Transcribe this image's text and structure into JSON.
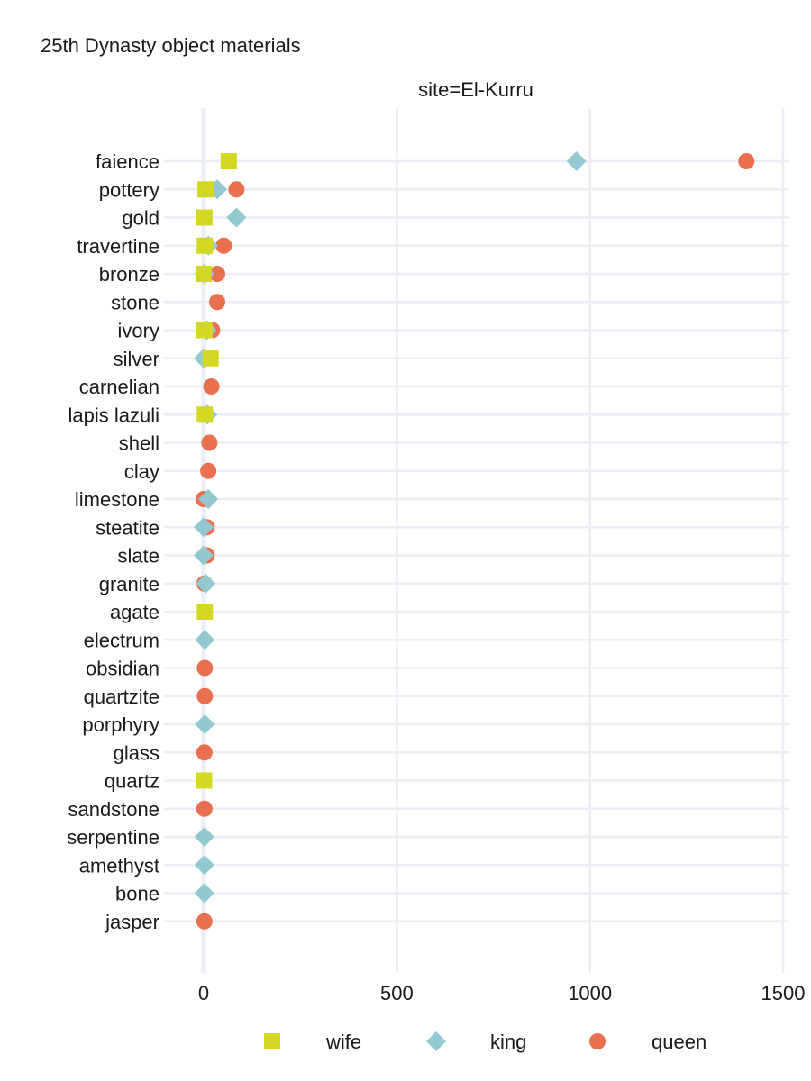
{
  "chart_data": {
    "type": "dot",
    "title": "25th Dynasty object materials",
    "facet_label": "site=El-Kurru",
    "xlabel": "",
    "ylabel": "",
    "xlim": [
      0,
      1500
    ],
    "x_ticks": [
      0,
      500,
      1000,
      1500
    ],
    "grid": true,
    "legend_position": "bottom",
    "categories": [
      "faience",
      "pottery",
      "gold",
      "travertine",
      "bronze",
      "stone",
      "ivory",
      "silver",
      "carnelian",
      "lapis lazuli",
      "shell",
      "clay",
      "limestone",
      "steatite",
      "slate",
      "granite",
      "agate",
      "electrum",
      "obsidian",
      "quartzite",
      "porphyry",
      "glass",
      "quartz",
      "sandstone",
      "serpentine",
      "amethyst",
      "bone",
      "jasper"
    ],
    "series": [
      {
        "name": "wife",
        "shape": "square",
        "color": "#d4d824",
        "values": [
          65,
          5,
          2,
          3,
          0,
          null,
          2,
          18,
          null,
          3,
          null,
          null,
          null,
          null,
          null,
          null,
          3,
          null,
          null,
          null,
          null,
          null,
          1,
          null,
          null,
          null,
          null,
          null
        ]
      },
      {
        "name": "king",
        "shape": "diamond",
        "color": "#92c9d0",
        "values": [
          965,
          35,
          85,
          12,
          2,
          null,
          8,
          0,
          null,
          10,
          null,
          null,
          12,
          0,
          0,
          5,
          null,
          3,
          null,
          null,
          3,
          null,
          null,
          null,
          2,
          2,
          2,
          null
        ]
      },
      {
        "name": "queen",
        "shape": "circle",
        "color": "#e8704f",
        "values": [
          1405,
          85,
          null,
          52,
          35,
          35,
          22,
          null,
          20,
          null,
          15,
          12,
          0,
          8,
          8,
          2,
          null,
          null,
          3,
          3,
          null,
          2,
          null,
          2,
          null,
          null,
          null,
          2
        ]
      }
    ]
  }
}
